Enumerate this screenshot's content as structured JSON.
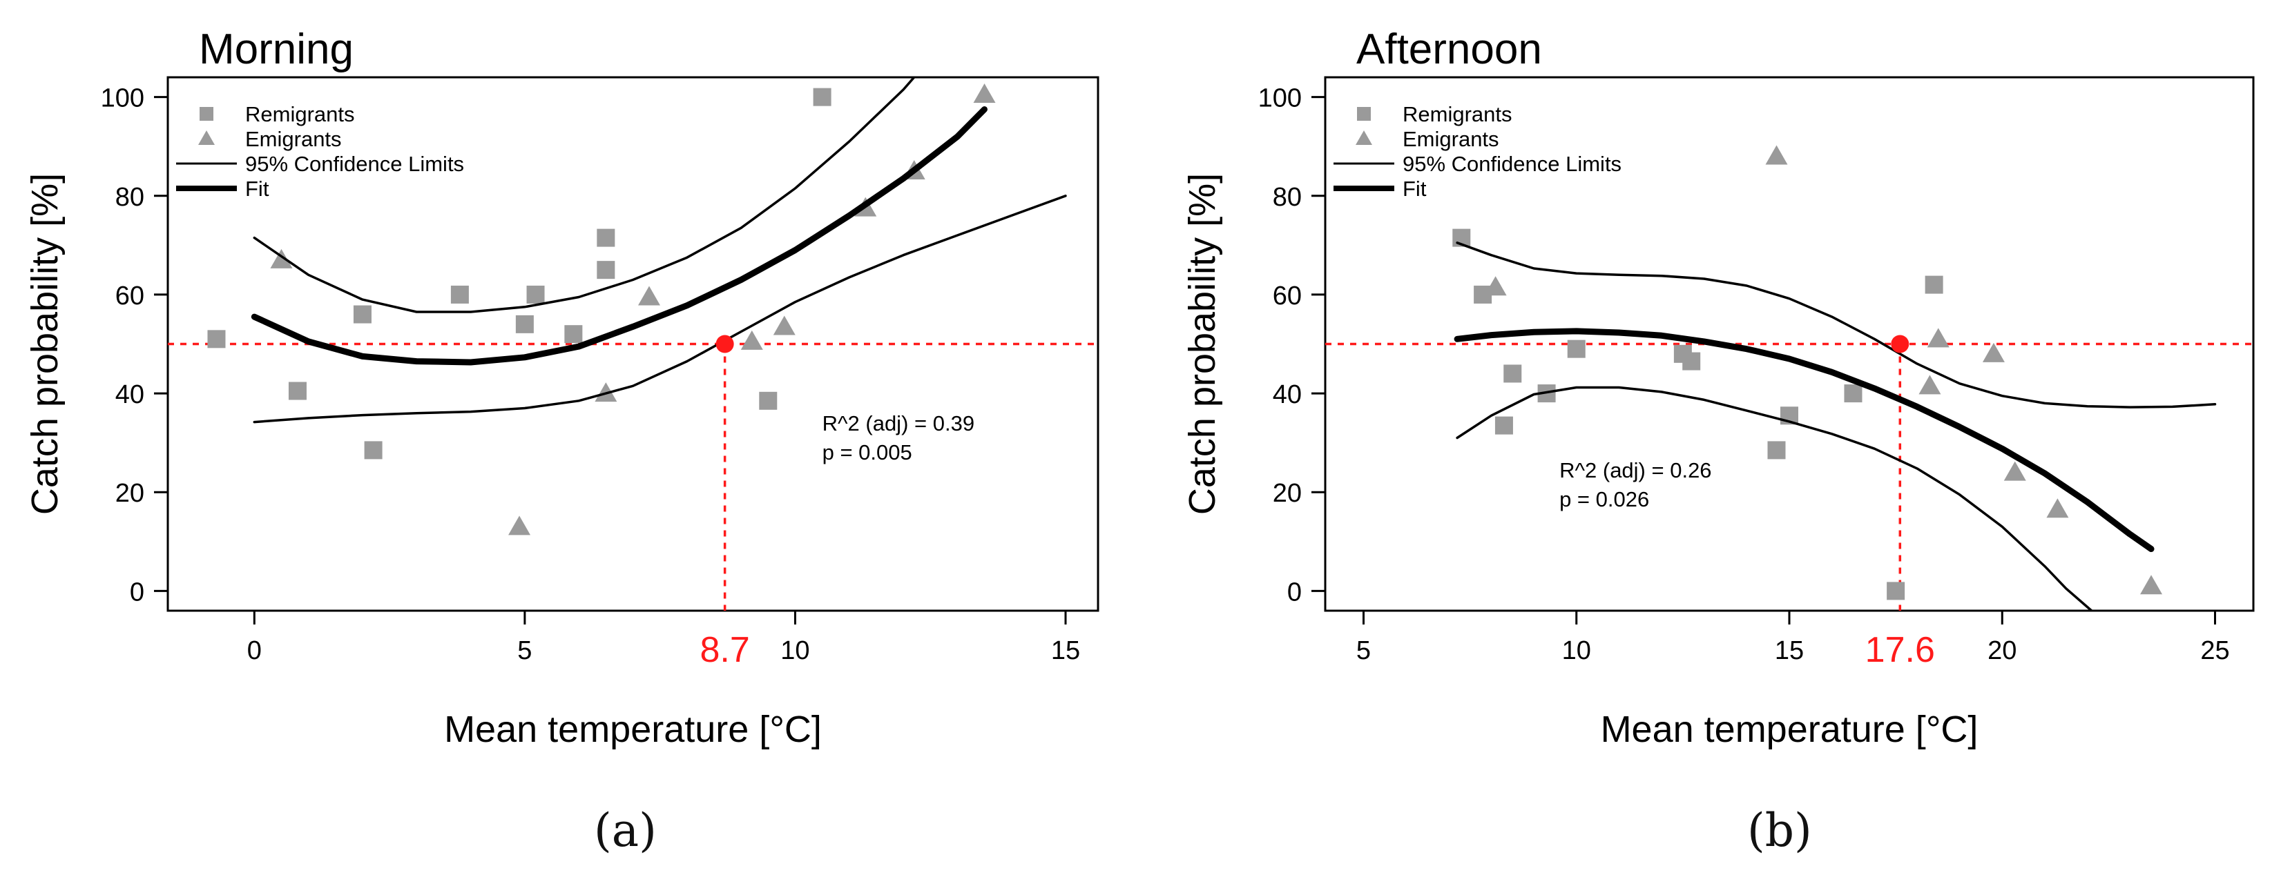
{
  "figure": {
    "panels": [
      "(a)",
      "(b)"
    ]
  },
  "colors": {
    "point": "#9a9a9a",
    "line": "#000000",
    "threshold": "#ff1a1a",
    "axis": "#000000"
  },
  "chart_data": [
    {
      "id": "a",
      "type": "scatter",
      "title": "Morning",
      "panel_label": "(a)",
      "xlabel": "Mean temperature [°C]",
      "ylabel": "Catch probability [%]",
      "xlim": [
        -1.6,
        15.6
      ],
      "ylim": [
        -4,
        104
      ],
      "xticks": [
        0,
        5,
        10,
        15
      ],
      "yticks": [
        0,
        20,
        40,
        60,
        80,
        100
      ],
      "legend": {
        "position": "top-left",
        "entries": [
          {
            "label": "Remigrants",
            "symbol": "square"
          },
          {
            "label": "Emigrants",
            "symbol": "triangle"
          },
          {
            "label": "95% Confidence Limits",
            "symbol": "thin-line"
          },
          {
            "label": "Fit",
            "symbol": "thick-line"
          }
        ]
      },
      "annotations": [
        "R^2 (adj) = 0.39",
        "p = 0.005"
      ],
      "threshold": {
        "x": 8.7,
        "x_label": "8.7",
        "y": 50
      },
      "series": [
        {
          "name": "Remigrants",
          "marker": "square",
          "x": [
            -0.7,
            0.8,
            2.0,
            2.2,
            3.8,
            5.0,
            5.2,
            5.9,
            6.5,
            6.5,
            9.5,
            10.5
          ],
          "y": [
            51,
            40.5,
            56,
            28.5,
            60,
            54,
            60,
            52,
            71.5,
            65,
            38.5,
            100
          ]
        },
        {
          "name": "Emigrants",
          "marker": "triangle",
          "x": [
            0.5,
            4.9,
            6.5,
            7.3,
            9.2,
            9.8,
            11.3,
            12.2,
            13.5
          ],
          "y": [
            67,
            13,
            40,
            59.5,
            50.5,
            53.5,
            77.5,
            85,
            100.5
          ]
        },
        {
          "name": "Fit",
          "style": "thick",
          "x": [
            0,
            1,
            2,
            3,
            4,
            5,
            6,
            7,
            8,
            9,
            10,
            11,
            12,
            13,
            13.5
          ],
          "y": [
            55.5,
            50.5,
            47.5,
            46.5,
            46.3,
            47.3,
            49.5,
            53.5,
            57.8,
            63,
            69,
            76,
            83.5,
            92,
            97.5
          ]
        },
        {
          "name": "Upper 95% Confidence Limit",
          "style": "thin",
          "x": [
            0,
            1,
            2,
            3,
            4,
            5,
            6,
            7,
            8,
            9,
            10,
            11,
            12,
            12.2
          ],
          "y": [
            71.5,
            64,
            59,
            56.5,
            56.5,
            57.5,
            59.5,
            63,
            67.5,
            73.5,
            81.5,
            91,
            101.5,
            104
          ]
        },
        {
          "name": "Lower 95% Confidence Limit",
          "style": "thin",
          "x": [
            0,
            1,
            2,
            3,
            4,
            5,
            6,
            7,
            8,
            9,
            10,
            11,
            12,
            13,
            14,
            15
          ],
          "y": [
            34.2,
            35,
            35.6,
            36,
            36.3,
            37,
            38.5,
            41.5,
            46.5,
            52.5,
            58.5,
            63.5,
            68,
            72,
            76,
            80
          ]
        }
      ]
    },
    {
      "id": "b",
      "type": "scatter",
      "title": "Afternoon",
      "panel_label": "(b)",
      "xlabel": "Mean temperature [°C]",
      "ylabel": "Catch probability [%]",
      "xlim": [
        4.1,
        25.9
      ],
      "ylim": [
        -4,
        104
      ],
      "xticks": [
        5,
        10,
        15,
        20,
        25
      ],
      "yticks": [
        0,
        20,
        40,
        60,
        80,
        100
      ],
      "legend": {
        "position": "top-left",
        "entries": [
          {
            "label": "Remigrants",
            "symbol": "square"
          },
          {
            "label": "Emigrants",
            "symbol": "triangle"
          },
          {
            "label": "95% Confidence Limits",
            "symbol": "thin-line"
          },
          {
            "label": "Fit",
            "symbol": "thick-line"
          }
        ]
      },
      "annotations": [
        "R^2 (adj) = 0.26",
        "p = 0.026"
      ],
      "threshold": {
        "x": 17.6,
        "x_label": "17.6",
        "y": 50
      },
      "series": [
        {
          "name": "Remigrants",
          "marker": "square",
          "x": [
            7.3,
            7.8,
            8.3,
            8.5,
            9.3,
            10.0,
            12.5,
            12.7,
            14.7,
            15.0,
            16.5,
            17.5,
            18.4
          ],
          "y": [
            71.5,
            60,
            33.5,
            44,
            40,
            49,
            48,
            46.5,
            28.5,
            35.5,
            40,
            0,
            62
          ]
        },
        {
          "name": "Emigrants",
          "marker": "triangle",
          "x": [
            8.1,
            14.7,
            18.3,
            18.5,
            19.8,
            20.3,
            21.3,
            23.5
          ],
          "y": [
            61.5,
            88,
            41.5,
            51,
            48,
            24,
            16.5,
            1
          ]
        },
        {
          "name": "Fit",
          "style": "thick",
          "x": [
            7.2,
            8,
            9,
            10,
            11,
            12,
            13,
            14,
            15,
            16,
            17,
            18,
            19,
            20,
            21,
            22,
            23,
            23.5
          ],
          "y": [
            51,
            51.8,
            52.4,
            52.6,
            52.3,
            51.7,
            50.5,
            49,
            47,
            44.3,
            41,
            37.3,
            33.2,
            28.8,
            23.8,
            18,
            11.5,
            8.5
          ]
        },
        {
          "name": "Upper 95% Confidence Limit",
          "style": "thin",
          "x": [
            7.2,
            8,
            9,
            10,
            11,
            12,
            13,
            14,
            15,
            16,
            17,
            18,
            19,
            20,
            21,
            22,
            23,
            24,
            25
          ],
          "y": [
            70.5,
            68,
            65.3,
            64.3,
            64,
            63.8,
            63.2,
            61.8,
            59.2,
            55.5,
            51,
            46,
            42,
            39.5,
            38,
            37.4,
            37.2,
            37.3,
            37.8
          ]
        },
        {
          "name": "Lower 95% Confidence Limit",
          "style": "thin",
          "x": [
            7.2,
            8,
            9,
            10,
            11,
            12,
            13,
            14,
            15,
            16,
            17,
            18,
            19,
            20,
            21,
            21.5,
            22.1
          ],
          "y": [
            31,
            35.5,
            39.8,
            41.2,
            41.2,
            40.3,
            38.7,
            36.5,
            34.3,
            31.8,
            28.8,
            24.8,
            19.5,
            13,
            5,
            0.5,
            -4
          ]
        }
      ]
    }
  ]
}
